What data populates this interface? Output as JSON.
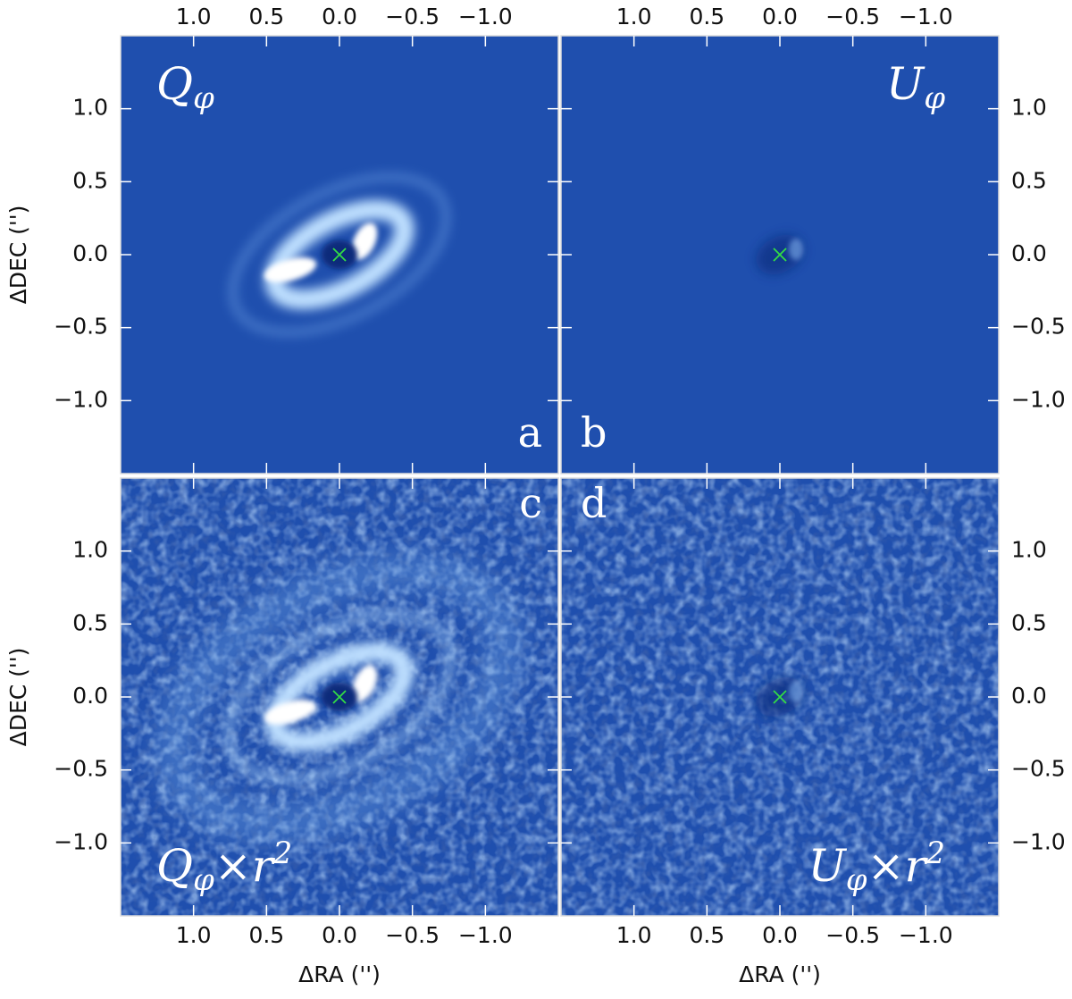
{
  "chart_data": [
    {
      "type": "image",
      "panel_label": "a",
      "label": {
        "symbol": "Q",
        "subscript": "φ"
      },
      "xlim": [
        1.5,
        -1.5
      ],
      "ylim": [
        -1.5,
        1.5
      ],
      "xticks": [
        {
          "value": 1,
          "label": "1.0"
        },
        0.5,
        {
          "value": 0,
          "label": "0.0"
        },
        {
          "value": -0.5,
          "label": "−0.5"
        },
        {
          "value": -1,
          "label": "−1.0"
        }
      ],
      "yticks": [
        {
          "value": -1,
          "label": "−1.0"
        },
        {
          "value": -0.5,
          "label": "−0.5"
        },
        {
          "value": 0,
          "label": "0.0"
        },
        0.5,
        {
          "value": 1,
          "label": "1.0"
        }
      ],
      "ylabel": "ΔDEC ('')",
      "marker": {
        "x": 0,
        "y": 0,
        "color": "#33dd44"
      }
    },
    {
      "type": "image",
      "panel_label": "b",
      "label": {
        "symbol": "U",
        "subscript": "φ"
      },
      "xlim": [
        1.5,
        -1.5
      ],
      "ylim": [
        -1.5,
        1.5
      ],
      "xticks": [
        {
          "value": 1,
          "label": "1.0"
        },
        0.5,
        {
          "value": 0,
          "label": "0.0"
        },
        {
          "value": -0.5,
          "label": "−0.5"
        },
        {
          "value": -1,
          "label": "−1.0"
        }
      ],
      "yticks": [
        {
          "value": -1,
          "label": "−1.0"
        },
        {
          "value": -0.5,
          "label": "−0.5"
        },
        {
          "value": 0,
          "label": "0.0"
        },
        0.5,
        {
          "value": 1,
          "label": "1.0"
        }
      ],
      "marker": {
        "x": 0,
        "y": 0,
        "color": "#33dd44"
      }
    },
    {
      "type": "image",
      "panel_label": "c",
      "label": {
        "symbol": "Q",
        "subscript": "φ",
        "suffix": "×r",
        "superscript": "2"
      },
      "xlim": [
        1.5,
        -1.5
      ],
      "ylim": [
        -1.5,
        1.5
      ],
      "xticks": [
        {
          "value": 1,
          "label": "1.0"
        },
        0.5,
        {
          "value": 0,
          "label": "0.0"
        },
        {
          "value": -0.5,
          "label": "−0.5"
        },
        {
          "value": -1,
          "label": "−1.0"
        }
      ],
      "yticks": [
        {
          "value": -1,
          "label": "−1.0"
        },
        {
          "value": -0.5,
          "label": "−0.5"
        },
        {
          "value": 0,
          "label": "0.0"
        },
        0.5,
        {
          "value": 1,
          "label": "1.0"
        }
      ],
      "xlabel": "ΔRA ('')",
      "ylabel": "ΔDEC ('')",
      "marker": {
        "x": 0,
        "y": 0,
        "color": "#33dd44"
      }
    },
    {
      "type": "image",
      "panel_label": "d",
      "label": {
        "symbol": "U",
        "subscript": "φ",
        "suffix": "×r",
        "superscript": "2"
      },
      "xlim": [
        1.5,
        -1.5
      ],
      "ylim": [
        -1.5,
        1.5
      ],
      "xticks": [
        {
          "value": 1,
          "label": "1.0"
        },
        0.5,
        {
          "value": 0,
          "label": "0.0"
        },
        {
          "value": -0.5,
          "label": "−0.5"
        },
        {
          "value": -1,
          "label": "−1.0"
        }
      ],
      "yticks": [
        {
          "value": -1,
          "label": "−1.0"
        },
        {
          "value": -0.5,
          "label": "−0.5"
        },
        {
          "value": 0,
          "label": "0.0"
        },
        0.5,
        {
          "value": 1,
          "label": "1.0"
        }
      ],
      "xlabel": "ΔRA ('')",
      "marker": {
        "x": 0,
        "y": 0,
        "color": "#33dd44"
      }
    }
  ]
}
